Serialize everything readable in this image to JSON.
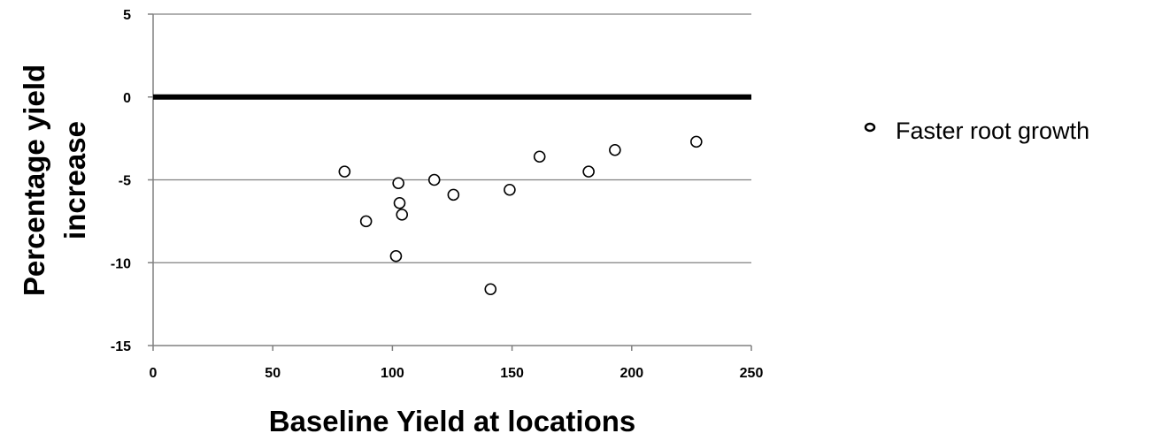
{
  "chart_data": {
    "type": "scatter",
    "xlabel": "Baseline Yield at locations",
    "ylabel_lines": [
      "Percentage yield",
      "increase"
    ],
    "xlim": [
      0,
      250
    ],
    "ylim": [
      -15,
      5
    ],
    "x_ticks": [
      0,
      50,
      100,
      150,
      200,
      250
    ],
    "y_ticks": [
      5,
      0,
      -5,
      -10,
      -15
    ],
    "x_tick_labels": [
      "0",
      "50",
      "100",
      "150",
      "200",
      "250"
    ],
    "y_tick_labels": [
      "5",
      "0",
      "-5",
      "-10",
      "-15"
    ],
    "grid": "horizontal",
    "reference_line_y": 0,
    "legend_position": "right",
    "series": [
      {
        "name": "Faster root growth",
        "marker": "open-circle",
        "points": [
          {
            "x": 80,
            "y": -4.5
          },
          {
            "x": 89,
            "y": -7.5
          },
          {
            "x": 101.5,
            "y": -9.6
          },
          {
            "x": 102.5,
            "y": -5.2
          },
          {
            "x": 103,
            "y": -6.4
          },
          {
            "x": 104,
            "y": -7.1
          },
          {
            "x": 117.5,
            "y": -5.0
          },
          {
            "x": 125.5,
            "y": -5.9
          },
          {
            "x": 141,
            "y": -11.6
          },
          {
            "x": 149,
            "y": -5.6
          },
          {
            "x": 161.5,
            "y": -3.6
          },
          {
            "x": 182,
            "y": -4.5
          },
          {
            "x": 193,
            "y": -3.2
          },
          {
            "x": 227,
            "y": -2.7
          }
        ]
      }
    ]
  },
  "colors": {
    "axis": "#808080",
    "grid": "#808080",
    "reference_line": "#000000",
    "marker_stroke": "#000000",
    "marker_fill": "#ffffff"
  }
}
